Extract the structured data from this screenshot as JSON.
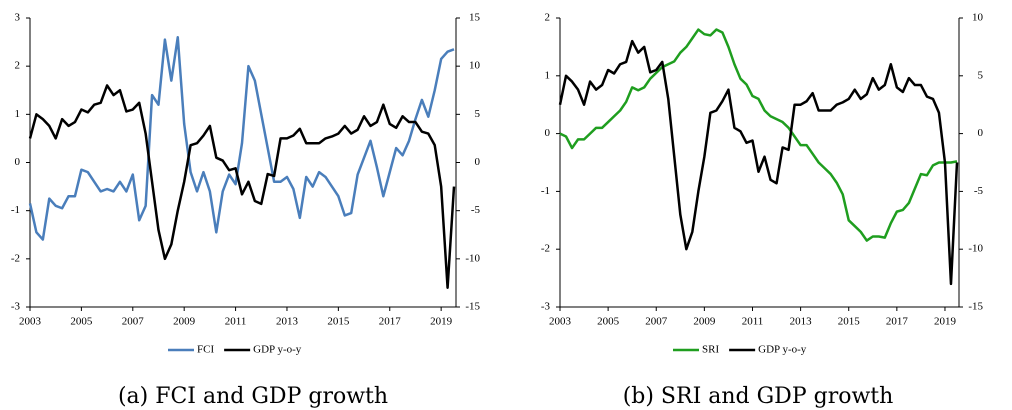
{
  "chart_data": [
    {
      "type": "line",
      "caption": "(a) FCI and GDP growth",
      "legend": "bottom",
      "x": [
        2003,
        2003.25,
        2003.5,
        2003.75,
        2004,
        2004.25,
        2004.5,
        2004.75,
        2005,
        2005.25,
        2005.5,
        2005.75,
        2006,
        2006.25,
        2006.5,
        2006.75,
        2007,
        2007.25,
        2007.5,
        2007.75,
        2008,
        2008.25,
        2008.5,
        2008.75,
        2009,
        2009.25,
        2009.5,
        2009.75,
        2010,
        2010.25,
        2010.5,
        2010.75,
        2011,
        2011.25,
        2011.5,
        2011.75,
        2012,
        2012.25,
        2012.5,
        2012.75,
        2013,
        2013.25,
        2013.5,
        2013.75,
        2014,
        2014.25,
        2014.5,
        2014.75,
        2015,
        2015.25,
        2015.5,
        2015.75,
        2016,
        2016.25,
        2016.5,
        2016.75,
        2017,
        2017.25,
        2017.5,
        2017.75,
        2018,
        2018.25,
        2018.5,
        2018.75,
        2019,
        2019.25,
        2019.5
      ],
      "xlim": [
        2003,
        2019.5
      ],
      "xticks": [
        2003,
        2005,
        2007,
        2009,
        2011,
        2013,
        2015,
        2017,
        2019
      ],
      "ylim": [
        -3,
        3
      ],
      "yticks": [
        -3,
        -2,
        -1,
        0,
        1,
        2,
        3
      ],
      "y2lim": [
        -15,
        15
      ],
      "y2ticks": [
        -15,
        -10,
        -5,
        0,
        5,
        10,
        15
      ],
      "series": [
        {
          "name": "FCI",
          "color": "#4a7ebb",
          "values": [
            -0.85,
            -1.45,
            -1.6,
            -0.75,
            -0.9,
            -0.95,
            -0.7,
            -0.7,
            -0.15,
            -0.2,
            -0.4,
            -0.6,
            -0.55,
            -0.6,
            -0.4,
            -0.6,
            -0.25,
            -1.2,
            -0.9,
            1.4,
            1.2,
            2.55,
            1.7,
            2.6,
            0.8,
            -0.2,
            -0.6,
            -0.2,
            -0.6,
            -1.45,
            -0.6,
            -0.25,
            -0.45,
            0.4,
            2.0,
            1.7,
            1.0,
            0.3,
            -0.4,
            -0.4,
            -0.3,
            -0.55,
            -1.15,
            -0.3,
            -0.5,
            -0.2,
            -0.3,
            -0.5,
            -0.7,
            -1.1,
            -1.05,
            -0.25,
            0.1,
            0.45,
            -0.1,
            -0.7,
            -0.2,
            0.3,
            0.15,
            0.45,
            0.9,
            1.3,
            0.95,
            1.5,
            2.15,
            2.3,
            2.35
          ]
        },
        {
          "name": "GDP y-o-y",
          "color": "#000000",
          "axis": "y2",
          "values": [
            2.5,
            5,
            4.5,
            3.8,
            2.5,
            4.5,
            3.8,
            4.2,
            5.5,
            5.2,
            6,
            6.2,
            8,
            7,
            7.5,
            5.3,
            5.5,
            6.2,
            3,
            -2,
            -7,
            -10,
            -8.5,
            -5,
            -2,
            1.8,
            2,
            2.8,
            3.8,
            0.5,
            0.2,
            -0.8,
            -0.6,
            -3.3,
            -2,
            -4,
            -4.3,
            -1.2,
            -1.4,
            2.5,
            2.5,
            2.8,
            3.5,
            2,
            2,
            2,
            2.5,
            2.7,
            3,
            3.8,
            3,
            3.4,
            4.8,
            3.8,
            4.2,
            6,
            4,
            3.6,
            4.8,
            4.2,
            4.2,
            3.2,
            3,
            1.8,
            -2.5,
            -13,
            -2.5
          ]
        }
      ]
    },
    {
      "type": "line",
      "caption": "(b) SRI and GDP growth",
      "legend": "bottom",
      "x": [
        2003,
        2003.25,
        2003.5,
        2003.75,
        2004,
        2004.25,
        2004.5,
        2004.75,
        2005,
        2005.25,
        2005.5,
        2005.75,
        2006,
        2006.25,
        2006.5,
        2006.75,
        2007,
        2007.25,
        2007.5,
        2007.75,
        2008,
        2008.25,
        2008.5,
        2008.75,
        2009,
        2009.25,
        2009.5,
        2009.75,
        2010,
        2010.25,
        2010.5,
        2010.75,
        2011,
        2011.25,
        2011.5,
        2011.75,
        2012,
        2012.25,
        2012.5,
        2012.75,
        2013,
        2013.25,
        2013.5,
        2013.75,
        2014,
        2014.25,
        2014.5,
        2014.75,
        2015,
        2015.25,
        2015.5,
        2015.75,
        2016,
        2016.25,
        2016.5,
        2016.75,
        2017,
        2017.25,
        2017.5,
        2017.75,
        2018,
        2018.25,
        2018.5,
        2018.75,
        2019,
        2019.25,
        2019.5
      ],
      "xlim": [
        2003,
        2019.5
      ],
      "xticks": [
        2003,
        2005,
        2007,
        2009,
        2011,
        2013,
        2015,
        2017,
        2019
      ],
      "ylim": [
        -3,
        2
      ],
      "yticks": [
        -3,
        -2,
        -1,
        0,
        1,
        2
      ],
      "y2lim": [
        -15,
        10
      ],
      "y2ticks": [
        -15,
        -10,
        -5,
        0,
        5,
        10
      ],
      "series": [
        {
          "name": "SRI",
          "color": "#1f9e1f",
          "values": [
            0,
            -0.05,
            -0.25,
            -0.1,
            -0.1,
            0,
            0.1,
            0.1,
            0.2,
            0.3,
            0.4,
            0.55,
            0.8,
            0.75,
            0.8,
            0.95,
            1.05,
            1.15,
            1.2,
            1.25,
            1.4,
            1.5,
            1.65,
            1.8,
            1.72,
            1.7,
            1.8,
            1.75,
            1.5,
            1.2,
            0.95,
            0.85,
            0.65,
            0.6,
            0.4,
            0.3,
            0.25,
            0.2,
            0.1,
            -0.05,
            -0.2,
            -0.2,
            -0.35,
            -0.5,
            -0.6,
            -0.7,
            -0.85,
            -1.05,
            -1.5,
            -1.6,
            -1.7,
            -1.85,
            -1.78,
            -1.78,
            -1.8,
            -1.55,
            -1.35,
            -1.32,
            -1.2,
            -0.95,
            -0.7,
            -0.72,
            -0.55,
            -0.5,
            -0.5,
            -0.5,
            -0.48
          ]
        },
        {
          "name": "GDP y-o-y",
          "color": "#000000",
          "axis": "y2",
          "values": [
            2.5,
            5,
            4.5,
            3.8,
            2.5,
            4.5,
            3.8,
            4.2,
            5.5,
            5.2,
            6,
            6.2,
            8,
            7,
            7.5,
            5.3,
            5.5,
            6.2,
            3,
            -2,
            -7,
            -10,
            -8.5,
            -5,
            -2,
            1.8,
            2,
            2.8,
            3.8,
            0.5,
            0.2,
            -0.8,
            -0.6,
            -3.3,
            -2,
            -4,
            -4.3,
            -1.2,
            -1.4,
            2.5,
            2.5,
            2.8,
            3.5,
            2,
            2,
            2,
            2.5,
            2.7,
            3,
            3.8,
            3,
            3.4,
            4.8,
            3.8,
            4.2,
            6,
            4,
            3.6,
            4.8,
            4.2,
            4.2,
            3.2,
            3,
            1.8,
            -2.5,
            -13,
            -2.5
          ]
        }
      ]
    }
  ]
}
